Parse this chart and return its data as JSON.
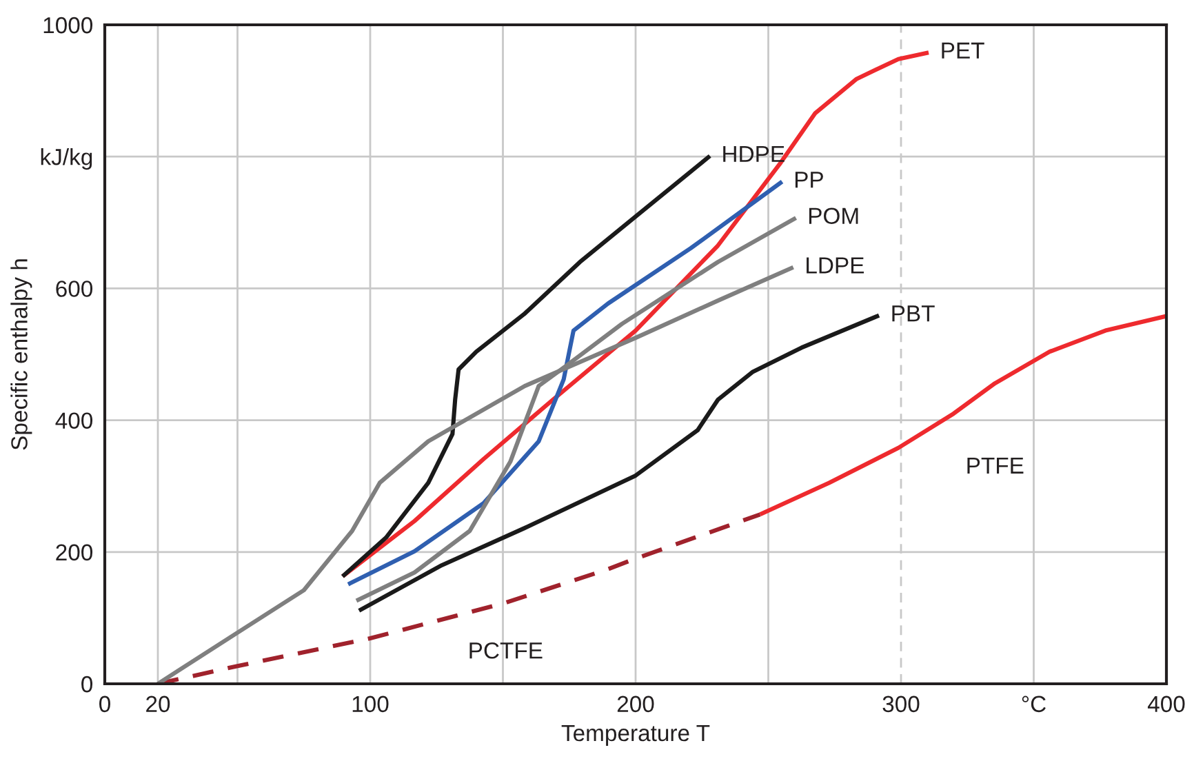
{
  "chart_data": {
    "type": "line",
    "xlabel": "Temperature T",
    "ylabel": "Specific enthalpy h",
    "xlim": [
      0,
      400
    ],
    "ylim": [
      0,
      1000
    ],
    "xticks": [
      0,
      20,
      {
        "value": 50,
        "label": null
      },
      100,
      {
        "value": 150,
        "label": null
      },
      200,
      {
        "value": 250,
        "label": null
      },
      300,
      {
        "value": 350,
        "label": "°C"
      },
      400
    ],
    "yticks": [
      0,
      200,
      400,
      600,
      {
        "value": 800,
        "label": "kJ/kg"
      },
      1000
    ],
    "grid": true,
    "line_style": "solid",
    "marker": "none",
    "ref_lines": [
      {
        "axis": "x",
        "value": 300,
        "label": null,
        "color": "#c8c8c8",
        "line_style": "dashed"
      }
    ],
    "series": [
      {
        "name": "PET",
        "color": "#ee2a2e",
        "x": [
          89.6,
          116.7,
          142.7,
          168.8,
          200,
          231,
          254.7,
          267.7,
          283.3,
          299,
          310.4
        ],
        "values": [
          163,
          247,
          341,
          431,
          536,
          665,
          791,
          866,
          918,
          948,
          958
        ]
      },
      {
        "name": "PTFE",
        "color": "#ee2a2e",
        "x": [
          246.9,
          272.9,
          299,
          319.8,
          335.4,
          356,
          377,
          400
        ],
        "values": [
          257,
          305,
          358,
          410,
          456,
          504,
          536,
          558
        ]
      },
      {
        "name": "PCTFE",
        "color": "#a0222c",
        "line_style": "dashed",
        "x": [
          20,
          50,
          100,
          151,
          189.6,
          200,
          246.9
        ],
        "values": [
          0,
          27,
          69,
          123,
          174,
          190,
          257
        ]
      },
      {
        "name": "HDPE",
        "color": "#1a1a1a",
        "x": [
          89.6,
          106,
          121.9,
          131,
          132,
          133.3,
          140,
          158,
          179,
          200,
          228
        ],
        "values": [
          163,
          222,
          305,
          379,
          431,
          477,
          504,
          561,
          640,
          709,
          801
        ]
      },
      {
        "name": "PP",
        "color": "#2f5fb0",
        "x": [
          91.7,
          116.7,
          142.7,
          163.5,
          172.9,
          176.6,
          189.6,
          220.8,
          255.2
        ],
        "values": [
          151,
          201,
          274,
          368,
          462,
          536,
          577,
          661,
          762
        ]
      },
      {
        "name": "POM",
        "color": "#7f7f7f",
        "x": [
          94.8,
          116.7,
          137.5,
          152.8,
          163.5,
          174,
          194.8,
          231,
          260.4
        ],
        "values": [
          126,
          169,
          232,
          337,
          452,
          483,
          546,
          640,
          707
        ]
      },
      {
        "name": "LDPE",
        "color": "#7f7f7f",
        "x": [
          20,
          49,
          75,
          93.2,
          103.6,
          121.9,
          158.3,
          200,
          231.3,
          259.4
        ],
        "values": [
          0,
          75,
          142,
          232,
          305,
          368,
          452,
          525,
          582,
          632
        ]
      },
      {
        "name": "PBT",
        "color": "#1a1a1a",
        "x": [
          95.8,
          127,
          158,
          200,
          223.4,
          231,
          244,
          262.5,
          291.7
        ],
        "values": [
          111,
          180,
          236,
          316,
          385,
          431,
          473,
          510,
          559
        ]
      }
    ]
  }
}
